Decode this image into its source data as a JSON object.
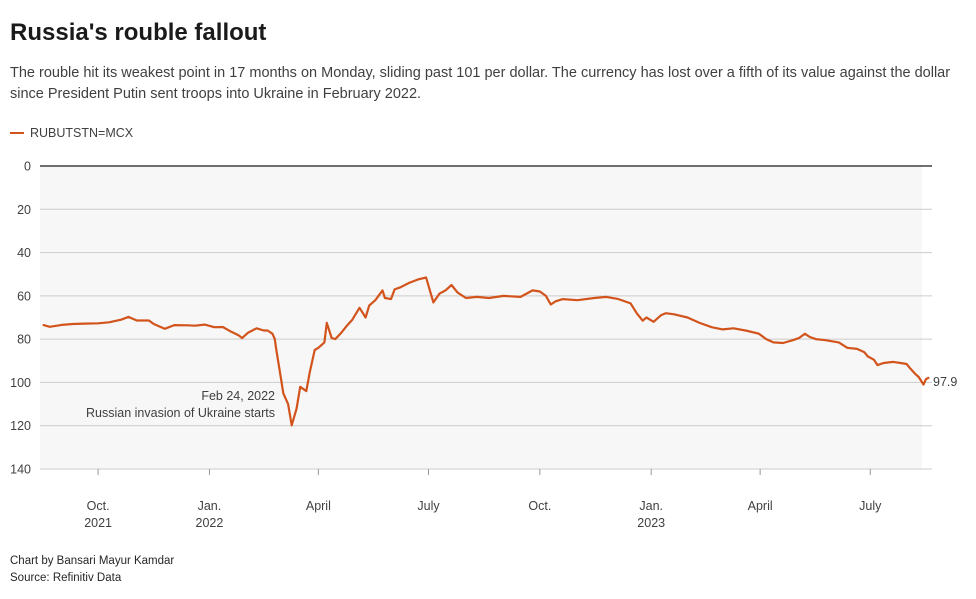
{
  "title": "Russia's rouble fallout",
  "subtitle": "The rouble hit its weakest point in 17 months on Monday, sliding past 101 per dollar. The currency has lost over a fifth of its value against the dollar since President Putin sent troops into Ukraine in February 2022.",
  "legend_label": "RUBUTSTN=MCX",
  "colors": {
    "line": "#d2541c",
    "grid": "#cccccc",
    "shade": "#f7f7f7",
    "axis": "#1a1a1a"
  },
  "annotation": {
    "date": "Feb 24, 2022",
    "text": "Russian invasion of Ukraine starts"
  },
  "end_label": "97.9",
  "footer": {
    "credit": "Chart by Bansari Mayur Kamdar",
    "source": "Source: Refinitiv Data"
  },
  "chart_data": {
    "type": "line",
    "ylim": [
      0,
      140
    ],
    "y_inverted": true,
    "yticks": [
      "0",
      "20",
      "40",
      "60",
      "80",
      "100",
      "120",
      "140"
    ],
    "xlim": [
      "2021-08-14",
      "2023-08-21"
    ],
    "xticks": [
      {
        "date": "2021-10-01",
        "label": "Oct.",
        "sublabel": "2021"
      },
      {
        "date": "2022-01-01",
        "label": "Jan.",
        "sublabel": "2022"
      },
      {
        "date": "2022-04-01",
        "label": "April",
        "sublabel": ""
      },
      {
        "date": "2022-07-01",
        "label": "July",
        "sublabel": ""
      },
      {
        "date": "2022-10-01",
        "label": "Oct.",
        "sublabel": ""
      },
      {
        "date": "2023-01-01",
        "label": "Jan.",
        "sublabel": "2023"
      },
      {
        "date": "2023-04-01",
        "label": "April",
        "sublabel": ""
      },
      {
        "date": "2023-07-01",
        "label": "July",
        "sublabel": ""
      }
    ],
    "series": [
      {
        "name": "RUBUTSTN=MCX",
        "points": [
          [
            "2021-08-17",
            73.5
          ],
          [
            "2021-08-22",
            74.3
          ],
          [
            "2021-09-01",
            73.4
          ],
          [
            "2021-09-10",
            73.0
          ],
          [
            "2021-09-20",
            72.8
          ],
          [
            "2021-10-01",
            72.7
          ],
          [
            "2021-10-10",
            72.2
          ],
          [
            "2021-10-20",
            71.0
          ],
          [
            "2021-10-26",
            69.7
          ],
          [
            "2021-11-02",
            71.4
          ],
          [
            "2021-11-12",
            71.4
          ],
          [
            "2021-11-16",
            73.0
          ],
          [
            "2021-11-25",
            75.2
          ],
          [
            "2021-12-03",
            73.5
          ],
          [
            "2021-12-14",
            73.6
          ],
          [
            "2021-12-20",
            73.8
          ],
          [
            "2021-12-28",
            73.3
          ],
          [
            "2022-01-05",
            74.5
          ],
          [
            "2022-01-12",
            74.4
          ],
          [
            "2022-01-18",
            76.3
          ],
          [
            "2022-01-25",
            78.2
          ],
          [
            "2022-01-28",
            79.5
          ],
          [
            "2022-02-02",
            77.0
          ],
          [
            "2022-02-09",
            75.0
          ],
          [
            "2022-02-15",
            76.0
          ],
          [
            "2022-02-18",
            76.0
          ],
          [
            "2022-02-22",
            77.5
          ],
          [
            "2022-02-24",
            80.0
          ],
          [
            "2022-02-25",
            84.0
          ],
          [
            "2022-03-01",
            98.0
          ],
          [
            "2022-03-03",
            105.0
          ],
          [
            "2022-03-07",
            110.0
          ],
          [
            "2022-03-10",
            119.8
          ],
          [
            "2022-03-14",
            112.0
          ],
          [
            "2022-03-17",
            102.0
          ],
          [
            "2022-03-22",
            104.0
          ],
          [
            "2022-03-25",
            95.0
          ],
          [
            "2022-03-29",
            85.0
          ],
          [
            "2022-04-01",
            84.0
          ],
          [
            "2022-04-06",
            81.5
          ],
          [
            "2022-04-08",
            72.5
          ],
          [
            "2022-04-12",
            79.5
          ],
          [
            "2022-04-15",
            80.0
          ],
          [
            "2022-04-20",
            77.0
          ],
          [
            "2022-04-25",
            73.5
          ],
          [
            "2022-04-29",
            71.0
          ],
          [
            "2022-05-05",
            65.5
          ],
          [
            "2022-05-10",
            70.0
          ],
          [
            "2022-05-13",
            64.5
          ],
          [
            "2022-05-18",
            62.0
          ],
          [
            "2022-05-24",
            57.5
          ],
          [
            "2022-05-26",
            61.0
          ],
          [
            "2022-05-31",
            61.5
          ],
          [
            "2022-06-03",
            57.0
          ],
          [
            "2022-06-08",
            56.0
          ],
          [
            "2022-06-15",
            54.0
          ],
          [
            "2022-06-22",
            52.5
          ],
          [
            "2022-06-29",
            51.5
          ],
          [
            "2022-07-05",
            63.0
          ],
          [
            "2022-07-10",
            59.0
          ],
          [
            "2022-07-15",
            57.5
          ],
          [
            "2022-07-20",
            55.0
          ],
          [
            "2022-07-25",
            58.5
          ],
          [
            "2022-08-01",
            61.0
          ],
          [
            "2022-08-10",
            60.5
          ],
          [
            "2022-08-20",
            61.0
          ],
          [
            "2022-09-01",
            60.0
          ],
          [
            "2022-09-15",
            60.5
          ],
          [
            "2022-09-25",
            57.5
          ],
          [
            "2022-10-01",
            58.0
          ],
          [
            "2022-10-06",
            60.0
          ],
          [
            "2022-10-10",
            64.0
          ],
          [
            "2022-10-14",
            62.5
          ],
          [
            "2022-10-20",
            61.5
          ],
          [
            "2022-11-01",
            62.0
          ],
          [
            "2022-11-15",
            61.0
          ],
          [
            "2022-11-25",
            60.5
          ],
          [
            "2022-12-05",
            61.5
          ],
          [
            "2022-12-15",
            63.5
          ],
          [
            "2022-12-20",
            68.0
          ],
          [
            "2022-12-25",
            71.5
          ],
          [
            "2022-12-28",
            70.0
          ],
          [
            "2023-01-03",
            72.0
          ],
          [
            "2023-01-09",
            69.0
          ],
          [
            "2023-01-13",
            68.0
          ],
          [
            "2023-01-20",
            68.5
          ],
          [
            "2023-01-31",
            70.0
          ],
          [
            "2023-02-10",
            72.5
          ],
          [
            "2023-02-20",
            74.5
          ],
          [
            "2023-03-01",
            75.5
          ],
          [
            "2023-03-10",
            75.0
          ],
          [
            "2023-03-20",
            76.0
          ],
          [
            "2023-03-31",
            77.5
          ],
          [
            "2023-04-06",
            80.0
          ],
          [
            "2023-04-12",
            81.5
          ],
          [
            "2023-04-20",
            81.8
          ],
          [
            "2023-04-28",
            80.5
          ],
          [
            "2023-05-03",
            79.5
          ],
          [
            "2023-05-08",
            77.5
          ],
          [
            "2023-05-12",
            79.0
          ],
          [
            "2023-05-17",
            80.0
          ],
          [
            "2023-05-25",
            80.5
          ],
          [
            "2023-06-05",
            81.5
          ],
          [
            "2023-06-12",
            84.0
          ],
          [
            "2023-06-20",
            84.5
          ],
          [
            "2023-06-26",
            86.0
          ],
          [
            "2023-06-29",
            88.0
          ],
          [
            "2023-07-04",
            89.5
          ],
          [
            "2023-07-07",
            92.0
          ],
          [
            "2023-07-12",
            91.0
          ],
          [
            "2023-07-20",
            90.5
          ],
          [
            "2023-07-26",
            91.0
          ],
          [
            "2023-07-31",
            91.5
          ],
          [
            "2023-08-03",
            93.5
          ],
          [
            "2023-08-07",
            96.0
          ],
          [
            "2023-08-10",
            97.5
          ],
          [
            "2023-08-14",
            101.0
          ],
          [
            "2023-08-16",
            98.5
          ],
          [
            "2023-08-18",
            97.9
          ]
        ]
      }
    ]
  }
}
